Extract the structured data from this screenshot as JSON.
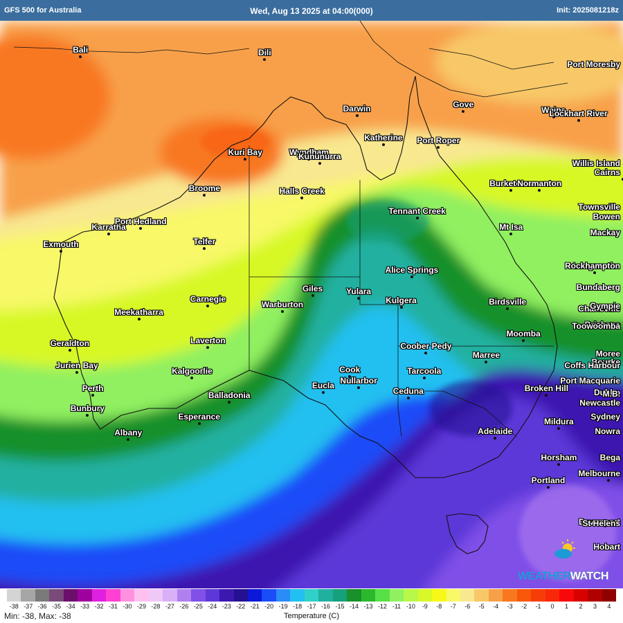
{
  "header": {
    "model": "GFS 500 for Australia",
    "valid_time": "Wed, Aug 13 2025 at 04:00(000)",
    "init": "Init: 2025081218z"
  },
  "map": {
    "type": "temperature field map",
    "variable": "Temperature (C)",
    "cities": [
      {
        "name": "Bali",
        "lon": 115.2,
        "lat": -8.4
      },
      {
        "name": "Dili",
        "lon": 125.6,
        "lat": -8.6
      },
      {
        "name": "Port Moresby",
        "lon": 147.2,
        "lat": -9.4
      },
      {
        "name": "Darwin",
        "lon": 130.8,
        "lat": -12.5
      },
      {
        "name": "Gove",
        "lon": 136.8,
        "lat": -12.2
      },
      {
        "name": "Weipa",
        "lon": 141.9,
        "lat": -12.6
      },
      {
        "name": "Lockhart River",
        "lon": 143.3,
        "lat": -12.8
      },
      {
        "name": "Katherine",
        "lon": 132.3,
        "lat": -14.5
      },
      {
        "name": "Kuri Bay",
        "lon": 124.5,
        "lat": -15.5
      },
      {
        "name": "Wyndham",
        "lon": 128.1,
        "lat": -15.5
      },
      {
        "name": "Port Roper",
        "lon": 135.4,
        "lat": -14.7
      },
      {
        "name": "Kununurra",
        "lon": 128.7,
        "lat": -15.8
      },
      {
        "name": "Cairns",
        "lon": 145.8,
        "lat": -16.9
      },
      {
        "name": "Willis Island",
        "lon": 149.9,
        "lat": -16.3
      },
      {
        "name": "Broome",
        "lon": 122.2,
        "lat": -18.0
      },
      {
        "name": "Halls Creek",
        "lon": 127.7,
        "lat": -18.2
      },
      {
        "name": "Burketown",
        "lon": 139.5,
        "lat": -17.7
      },
      {
        "name": "Normanton",
        "lon": 141.1,
        "lat": -17.7
      },
      {
        "name": "Tennant Creek",
        "lon": 134.2,
        "lat": -19.6
      },
      {
        "name": "Townsville",
        "lon": 146.8,
        "lat": -19.3
      },
      {
        "name": "Bowen",
        "lon": 148.2,
        "lat": -20.0
      },
      {
        "name": "Karratha",
        "lon": 116.8,
        "lat": -20.7
      },
      {
        "name": "Port Hedland",
        "lon": 118.6,
        "lat": -20.3
      },
      {
        "name": "Mt Isa",
        "lon": 139.5,
        "lat": -20.7
      },
      {
        "name": "Mackay",
        "lon": 149.2,
        "lat": -21.1
      },
      {
        "name": "Exmouth",
        "lon": 114.1,
        "lat": -21.9
      },
      {
        "name": "Telfer",
        "lon": 122.2,
        "lat": -21.7
      },
      {
        "name": "Alice Springs",
        "lon": 133.9,
        "lat": -23.7
      },
      {
        "name": "Longreach",
        "lon": 144.2,
        "lat": -23.4
      },
      {
        "name": "Rockhampton",
        "lon": 150.5,
        "lat": -23.4
      },
      {
        "name": "Giles",
        "lon": 128.3,
        "lat": -25.0
      },
      {
        "name": "Yulara",
        "lon": 130.9,
        "lat": -25.2
      },
      {
        "name": "Carnegie",
        "lon": 122.4,
        "lat": -25.7
      },
      {
        "name": "Bundaberg",
        "lon": 152.3,
        "lat": -24.9
      },
      {
        "name": "Birdsville",
        "lon": 139.3,
        "lat": -25.9
      },
      {
        "name": "Meekatharra",
        "lon": 118.5,
        "lat": -26.6
      },
      {
        "name": "Warburton",
        "lon": 126.6,
        "lat": -26.1
      },
      {
        "name": "Kulgera",
        "lon": 133.3,
        "lat": -25.8
      },
      {
        "name": "Charleville",
        "lon": 146.2,
        "lat": -26.4
      },
      {
        "name": "Gympie",
        "lon": 152.7,
        "lat": -26.2
      },
      {
        "name": "Brisbane",
        "lon": 153.0,
        "lat": -27.5
      },
      {
        "name": "Toowoomba",
        "lon": 151.9,
        "lat": -27.6
      },
      {
        "name": "Moomba",
        "lon": 140.2,
        "lat": -28.1
      },
      {
        "name": "Geraldton",
        "lon": 114.6,
        "lat": -28.8
      },
      {
        "name": "Laverton",
        "lon": 122.4,
        "lat": -28.6
      },
      {
        "name": "Coober Pedy",
        "lon": 134.7,
        "lat": -29.0
      },
      {
        "name": "Moree",
        "lon": 149.8,
        "lat": -29.5
      },
      {
        "name": "Marree",
        "lon": 138.1,
        "lat": -29.6
      },
      {
        "name": "Bourke",
        "lon": 145.9,
        "lat": -30.1
      },
      {
        "name": "Coffs Harbour",
        "lon": 153.1,
        "lat": -30.3
      },
      {
        "name": "Jurien Bay",
        "lon": 115.0,
        "lat": -30.3
      },
      {
        "name": "Cook",
        "lon": 130.4,
        "lat": -30.6
      },
      {
        "name": "Kalgoorlie",
        "lon": 121.5,
        "lat": -30.7
      },
      {
        "name": "Tarcoola",
        "lon": 134.6,
        "lat": -30.7
      },
      {
        "name": "Eucla",
        "lon": 128.9,
        "lat": -31.7
      },
      {
        "name": "Nullarbor",
        "lon": 130.9,
        "lat": -31.4
      },
      {
        "name": "Broken Hill",
        "lon": 141.5,
        "lat": -31.9
      },
      {
        "name": "Port Macquarie",
        "lon": 152.9,
        "lat": -31.4
      },
      {
        "name": "Perth",
        "lon": 115.9,
        "lat": -31.9
      },
      {
        "name": "Ceduna",
        "lon": 133.7,
        "lat": -32.1
      },
      {
        "name": "Dubbo",
        "lon": 148.6,
        "lat": -32.2
      },
      {
        "name": "M.B.",
        "lon": 151.0,
        "lat": -32.3
      },
      {
        "name": "Balladonia",
        "lon": 123.6,
        "lat": -32.4
      },
      {
        "name": "Newcastle",
        "lon": 151.8,
        "lat": -32.9
      },
      {
        "name": "Bunbury",
        "lon": 115.6,
        "lat": -33.3
      },
      {
        "name": "Esperance",
        "lon": 121.9,
        "lat": -33.9
      },
      {
        "name": "Sydney",
        "lon": 151.2,
        "lat": -33.9
      },
      {
        "name": "Mildura",
        "lon": 142.2,
        "lat": -34.2
      },
      {
        "name": "Albany",
        "lon": 117.9,
        "lat": -35.0
      },
      {
        "name": "Nowra",
        "lon": 150.6,
        "lat": -34.9
      },
      {
        "name": "Adelaide",
        "lon": 138.6,
        "lat": -34.9
      },
      {
        "name": "Horsham",
        "lon": 142.2,
        "lat": -36.7
      },
      {
        "name": "Bega",
        "lon": 149.8,
        "lat": -36.7
      },
      {
        "name": "Melbourne",
        "lon": 145.0,
        "lat": -37.8
      },
      {
        "name": "Portland",
        "lon": 141.6,
        "lat": -38.3
      },
      {
        "name": "Devonport",
        "lon": 146.4,
        "lat": -41.2
      },
      {
        "name": "St Helens",
        "lon": 148.2,
        "lat": -41.3
      },
      {
        "name": "Hobart",
        "lon": 147.3,
        "lat": -42.9
      }
    ]
  },
  "logo": {
    "part1": "WEATHER",
    "part2": "WATCH"
  },
  "legend": {
    "title": "Temperature (C)",
    "min_max": "Min: -38, Max: -38",
    "ticks": [
      "-38",
      "-37",
      "-36",
      "-35",
      "-34",
      "-33",
      "-32",
      "-31",
      "-30",
      "-29",
      "-28",
      "-27",
      "-26",
      "-25",
      "-24",
      "-23",
      "-22",
      "-21",
      "-20",
      "-19",
      "-18",
      "-17",
      "-16",
      "-15",
      "-14",
      "-13",
      "-12",
      "-11",
      "-10",
      "-9",
      "-8",
      "-7",
      "-6",
      "-5",
      "-4",
      "-3",
      "-2",
      "-1",
      "0",
      "1",
      "2",
      "3",
      "4"
    ],
    "colors": [
      "#d4d4d4",
      "#a6a6a6",
      "#7a7a7a",
      "#7a4a7a",
      "#6b0f6b",
      "#a000a0",
      "#e020e0",
      "#ff40d0",
      "#ff90e0",
      "#ffc0f0",
      "#f0c8f8",
      "#d8b0f8",
      "#b080f0",
      "#8050e8",
      "#5c38d8",
      "#3c18b0",
      "#241090",
      "#0a18d8",
      "#1a4cf8",
      "#2a8cf8",
      "#22c0f0",
      "#30d0c8",
      "#20b0a0",
      "#16a07c",
      "#18902c",
      "#2cb82c",
      "#58e048",
      "#90f060",
      "#b8f848",
      "#d8f828",
      "#f8f818",
      "#f8f868",
      "#f8e890",
      "#f8c868",
      "#f8a048",
      "#f87820",
      "#f85808",
      "#f83c08",
      "#f82808",
      "#f80808",
      "#d80000",
      "#b00000",
      "#900000"
    ]
  }
}
